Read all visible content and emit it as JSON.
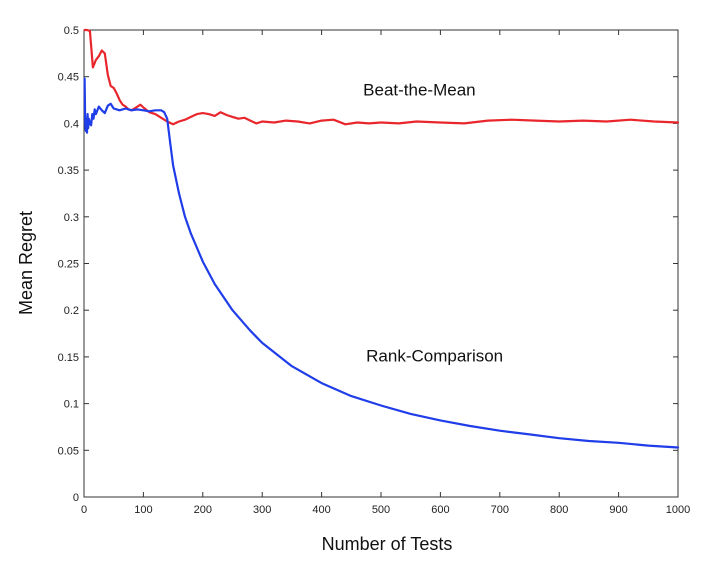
{
  "chart_data": {
    "type": "line",
    "title": "",
    "xlabel": "Number of Tests",
    "ylabel": "Mean Regret",
    "xlim": [
      0,
      1000
    ],
    "ylim": [
      0,
      0.5
    ],
    "xticks": [
      0,
      100,
      200,
      300,
      400,
      500,
      600,
      700,
      800,
      900,
      1000
    ],
    "yticks": [
      0,
      0.05,
      0.1,
      0.15,
      0.2,
      0.25,
      0.3,
      0.35,
      0.4,
      0.45,
      0.5
    ],
    "ytick_labels": [
      "0",
      "0.05",
      "0.1",
      "0.15",
      "0.2",
      "0.25",
      "0.3",
      "0.35",
      "0.4",
      "0.45",
      "0.5"
    ],
    "grid": false,
    "legend": "none",
    "series": [
      {
        "name": "Beat-the-Mean",
        "color": "#e8262c",
        "label_position": {
          "x": 470,
          "y": 0.43
        },
        "x": [
          1,
          5,
          10,
          15,
          20,
          25,
          30,
          35,
          40,
          45,
          50,
          55,
          60,
          65,
          70,
          75,
          80,
          85,
          90,
          95,
          100,
          110,
          120,
          130,
          140,
          150,
          160,
          170,
          180,
          190,
          200,
          210,
          220,
          230,
          240,
          250,
          260,
          270,
          280,
          290,
          300,
          320,
          340,
          360,
          380,
          400,
          420,
          440,
          460,
          480,
          500,
          530,
          560,
          600,
          640,
          680,
          720,
          760,
          800,
          840,
          880,
          920,
          960,
          1000
        ],
        "y": [
          0.5,
          0.5,
          0.499,
          0.46,
          0.468,
          0.472,
          0.478,
          0.475,
          0.452,
          0.44,
          0.438,
          0.432,
          0.425,
          0.42,
          0.418,
          0.415,
          0.414,
          0.416,
          0.418,
          0.42,
          0.417,
          0.412,
          0.41,
          0.406,
          0.402,
          0.399,
          0.402,
          0.404,
          0.407,
          0.41,
          0.411,
          0.41,
          0.408,
          0.412,
          0.409,
          0.407,
          0.405,
          0.406,
          0.403,
          0.4,
          0.402,
          0.401,
          0.403,
          0.402,
          0.4,
          0.403,
          0.404,
          0.399,
          0.401,
          0.4,
          0.401,
          0.4,
          0.402,
          0.401,
          0.4,
          0.403,
          0.404,
          0.403,
          0.402,
          0.403,
          0.402,
          0.404,
          0.402,
          0.401
        ]
      },
      {
        "name": "Rank-Comparison",
        "color": "#1f3de8",
        "label_position": {
          "x": 475,
          "y": 0.145
        },
        "x": [
          1,
          2,
          3,
          4,
          5,
          6,
          7,
          8,
          10,
          12,
          14,
          16,
          18,
          20,
          25,
          30,
          35,
          40,
          45,
          50,
          55,
          60,
          70,
          80,
          90,
          100,
          110,
          120,
          130,
          135,
          140,
          145,
          150,
          160,
          170,
          180,
          200,
          220,
          250,
          280,
          300,
          350,
          400,
          450,
          500,
          550,
          600,
          650,
          700,
          750,
          800,
          850,
          900,
          950,
          1000
        ],
        "y": [
          0.448,
          0.4,
          0.392,
          0.405,
          0.39,
          0.41,
          0.395,
          0.405,
          0.4,
          0.398,
          0.41,
          0.405,
          0.415,
          0.41,
          0.418,
          0.414,
          0.411,
          0.419,
          0.421,
          0.416,
          0.415,
          0.414,
          0.416,
          0.414,
          0.415,
          0.414,
          0.413,
          0.414,
          0.414,
          0.412,
          0.405,
          0.38,
          0.355,
          0.325,
          0.3,
          0.282,
          0.252,
          0.228,
          0.2,
          0.178,
          0.165,
          0.14,
          0.122,
          0.108,
          0.098,
          0.089,
          0.082,
          0.076,
          0.071,
          0.067,
          0.063,
          0.06,
          0.058,
          0.055,
          0.053
        ]
      }
    ]
  }
}
